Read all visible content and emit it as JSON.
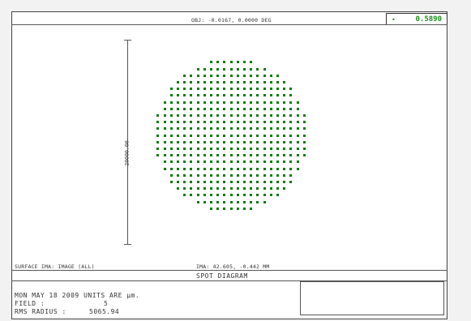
{
  "window": {
    "title": "SPOT DIAGRAM"
  },
  "header": {
    "object_field": "OBJ: -0.0167, 0.0000 DEG",
    "wavelength": "0.5890",
    "wavelength_color": "#1a8f1a"
  },
  "plot": {
    "scale_bar_label": "20000.00",
    "surface_label": "SURFACE IMA: IMAGE (ALL)",
    "image_coords": "IMA: 42.605, -0.442 MM",
    "spot_color": "#0f7a0f"
  },
  "footer": {
    "line1": "MON MAY 18 2009  UNITS ARE µm.",
    "field_label": "FIELD   :",
    "field_value": "5",
    "rms_label": "RMS RADIUS :",
    "rms_value": "5065.94"
  }
}
